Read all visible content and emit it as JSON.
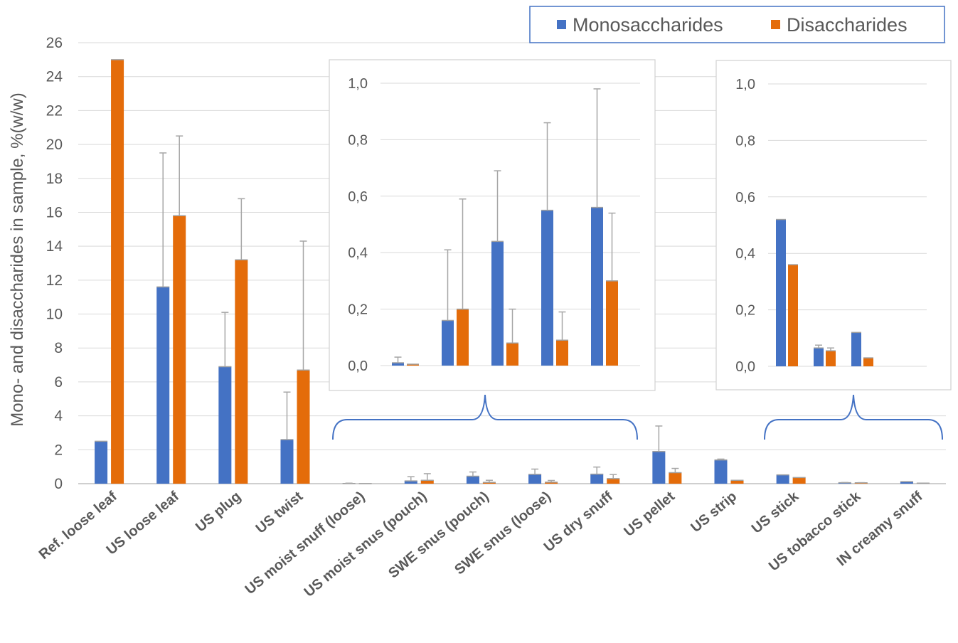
{
  "chart_data": [
    {
      "type": "bar",
      "role": "main",
      "ylabel": "Mono- and disaccharides in sample, %(w/w)",
      "ylim": [
        0,
        26
      ],
      "yticks": [
        0,
        2,
        4,
        6,
        8,
        10,
        12,
        14,
        16,
        18,
        20,
        22,
        24,
        26
      ],
      "grid": true,
      "legend_position": "top-right",
      "colors": {
        "Monosaccharides": "#4472C4",
        "Disaccharides": "#E46C0A"
      },
      "categories": [
        "Ref. loose leaf",
        "US loose leaf",
        "US plug",
        "US twist",
        "US moist snuff (loose)",
        "US moist snus (pouch)",
        "SWE snus (pouch)",
        "SWE snus (loose)",
        "US dry snuff",
        "US pellet",
        "US strip",
        "US stick",
        "US tobacco stick",
        "IN creamy snuff"
      ],
      "series": [
        {
          "name": "Monosaccharides",
          "values": [
            2.5,
            11.6,
            6.9,
            2.6,
            0.01,
            0.16,
            0.44,
            0.55,
            0.56,
            1.9,
            1.4,
            0.52,
            0.06,
            0.12
          ],
          "error": [
            0.0,
            7.9,
            3.2,
            2.8,
            0.02,
            0.25,
            0.25,
            0.31,
            0.42,
            1.5,
            0.05,
            0.0,
            0.01,
            0.0
          ]
        },
        {
          "name": "Disaccharides",
          "values": [
            25.0,
            15.8,
            13.2,
            6.7,
            0.005,
            0.2,
            0.08,
            0.09,
            0.3,
            0.65,
            0.2,
            0.36,
            0.05,
            0.03
          ],
          "error": [
            0.0,
            4.7,
            3.6,
            7.6,
            0.0,
            0.39,
            0.12,
            0.1,
            0.24,
            0.25,
            0.0,
            0.0,
            0.01,
            0.0
          ]
        }
      ]
    },
    {
      "type": "bar",
      "role": "inset",
      "ylim": [
        0,
        1.0
      ],
      "yticks": [
        "0,0",
        "0,2",
        "0,4",
        "0,6",
        "0,8",
        "1,0"
      ],
      "categories": [
        "US moist snuff (loose)",
        "US moist snus (pouch)",
        "SWE snus (pouch)",
        "SWE snus (loose)",
        "US dry snuff"
      ],
      "series": [
        {
          "name": "Monosaccharides",
          "values": [
            0.01,
            0.16,
            0.44,
            0.55,
            0.56
          ],
          "error": [
            0.02,
            0.25,
            0.25,
            0.31,
            0.42
          ]
        },
        {
          "name": "Disaccharides",
          "values": [
            0.005,
            0.2,
            0.08,
            0.09,
            0.3
          ],
          "error": [
            0.0,
            0.39,
            0.12,
            0.1,
            0.24
          ]
        }
      ]
    },
    {
      "type": "bar",
      "role": "inset",
      "ylim": [
        0,
        1.0
      ],
      "yticks": [
        "0,0",
        "0,2",
        "0,4",
        "0,6",
        "0,8",
        "1,0"
      ],
      "categories": [
        "US stick",
        "US tobacco stick",
        "IN creamy snuff"
      ],
      "series": [
        {
          "name": "Monosaccharides",
          "values": [
            0.52,
            0.065,
            0.12
          ],
          "error": [
            0.0,
            0.01,
            0.0
          ]
        },
        {
          "name": "Disaccharides",
          "values": [
            0.36,
            0.055,
            0.03
          ],
          "error": [
            0.0,
            0.01,
            0.0
          ]
        }
      ]
    }
  ]
}
